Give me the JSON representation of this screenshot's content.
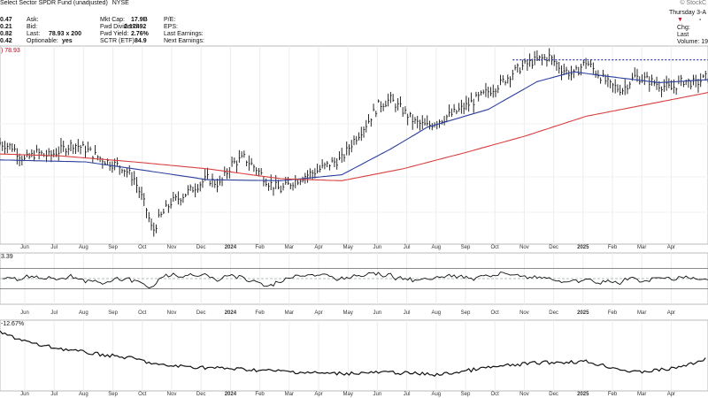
{
  "header": {
    "title": "Select Sector SPDR Fund (unadjusted)",
    "exchange": "NYSE",
    "brand": "© StockC",
    "date_text": "Thursday 3-A",
    "change_value": "-",
    "left_values": [
      "0.47",
      "0.21",
      "0.82",
      "0.42"
    ],
    "quote": [
      {
        "label": "Ask:",
        "value": ""
      },
      {
        "label": "Bid:",
        "value": ""
      },
      {
        "label": "Last:",
        "value": "78.93 x 200"
      },
      {
        "label": "Optionable:",
        "value": "yes"
      }
    ],
    "fundamentals": [
      {
        "label": "Mkt Cap:",
        "value": "17.9B"
      },
      {
        "label": "Fwd Dividend:",
        "value": "2.17492"
      },
      {
        "label": "Fwd Yield:",
        "value": "2.76%"
      },
      {
        "label": "SCTR (ETF):",
        "value": "84.9"
      }
    ],
    "earnings": [
      {
        "label": "P/E:",
        "value": ""
      },
      {
        "label": "EPS:",
        "value": ""
      },
      {
        "label": "Last Earnings:",
        "value": ""
      },
      {
        "label": "Next Earnings:",
        "value": ""
      }
    ],
    "right_labels": [
      "Chg:",
      "Last",
      "Volume: 19,2"
    ]
  },
  "chart_data": [
    {
      "type": "ohlc",
      "price_label": ") 78.93",
      "x_tick_labels": [
        "Jun",
        "Jul",
        "Aug",
        "Sep",
        "Oct",
        "Nov",
        "Dec",
        "2024",
        "Feb",
        "Mar",
        "Apr",
        "May",
        "Jun",
        "Jul",
        "Aug",
        "Sep",
        "Oct",
        "Nov",
        "Dec",
        "2025",
        "Feb",
        "Mar",
        "Apr"
      ],
      "bold_tick_labels": [
        "2024",
        "2025"
      ],
      "closes": [
        [
          0,
          72.2
        ],
        [
          2,
          71.8
        ],
        [
          4,
          70.5
        ],
        [
          6,
          71.2
        ],
        [
          8,
          70.9
        ],
        [
          10,
          71.5
        ],
        [
          12,
          72.1
        ],
        [
          14,
          71.6
        ],
        [
          16,
          70.8
        ],
        [
          18,
          70.2
        ],
        [
          20,
          69.8
        ],
        [
          22,
          68.6
        ],
        [
          24,
          65.5
        ],
        [
          25,
          63.2
        ],
        [
          26,
          64.5
        ],
        [
          28,
          66.2
        ],
        [
          30,
          66.9
        ],
        [
          32,
          67.8
        ],
        [
          34,
          68.6
        ],
        [
          36,
          68.0
        ],
        [
          38,
          70.1
        ],
        [
          40,
          70.7
        ],
        [
          42,
          69.6
        ],
        [
          44,
          68.2
        ],
        [
          46,
          67.5
        ],
        [
          48,
          68.3
        ],
        [
          50,
          68.9
        ],
        [
          52,
          69.4
        ],
        [
          54,
          70.1
        ],
        [
          56,
          70.6
        ],
        [
          58,
          72.5
        ],
        [
          60,
          74.1
        ],
        [
          62,
          76.0
        ],
        [
          64,
          76.6
        ],
        [
          66,
          75.5
        ],
        [
          68,
          74.3
        ],
        [
          70,
          73.9
        ],
        [
          72,
          74.5
        ],
        [
          74,
          75.1
        ],
        [
          76,
          75.8
        ],
        [
          78,
          76.6
        ],
        [
          80,
          77.4
        ],
        [
          82,
          78.2
        ],
        [
          84,
          79.3
        ],
        [
          86,
          80.1
        ],
        [
          88,
          80.6
        ],
        [
          90,
          80.9
        ],
        [
          92,
          79.7
        ],
        [
          94,
          79.1
        ],
        [
          96,
          80.4
        ],
        [
          98,
          79.2
        ],
        [
          100,
          78.0
        ],
        [
          102,
          77.6
        ],
        [
          104,
          78.9
        ],
        [
          106,
          78.6
        ],
        [
          108,
          78.1
        ],
        [
          110,
          77.7
        ],
        [
          112,
          78.5
        ],
        [
          114,
          78.2
        ],
        [
          116,
          78.93
        ]
      ],
      "resistance_level": 80.6,
      "moving_averages": [
        {
          "color": "#2b3f9e",
          "values": [
            [
              0,
              70.5
            ],
            [
              14,
              70.3
            ],
            [
              22,
              69.6
            ],
            [
              34,
              68.5
            ],
            [
              46,
              68.4
            ],
            [
              56,
              69.0
            ],
            [
              64,
              71.6
            ],
            [
              70,
              73.8
            ],
            [
              80,
              75.6
            ],
            [
              88,
              78.4
            ],
            [
              94,
              79.4
            ],
            [
              100,
              78.9
            ],
            [
              108,
              78.3
            ],
            [
              116,
              78.6
            ]
          ]
        },
        {
          "color": "#d84040",
          "values": [
            [
              0,
              71.1
            ],
            [
              10,
              70.9
            ],
            [
              22,
              70.3
            ],
            [
              34,
              69.6
            ],
            [
              46,
              68.6
            ],
            [
              56,
              68.4
            ],
            [
              66,
              69.6
            ],
            [
              76,
              71.2
            ],
            [
              86,
              72.9
            ],
            [
              96,
              74.9
            ],
            [
              106,
              76.1
            ],
            [
              116,
              77.3
            ]
          ]
        }
      ]
    },
    {
      "type": "line",
      "label": "3.39",
      "ref_lines": [
        70,
        50,
        30
      ],
      "overbought_color": "#3a7a3a",
      "oversold_color": "#c43c3c"
    },
    {
      "type": "line",
      "label": "-12.67%"
    }
  ]
}
